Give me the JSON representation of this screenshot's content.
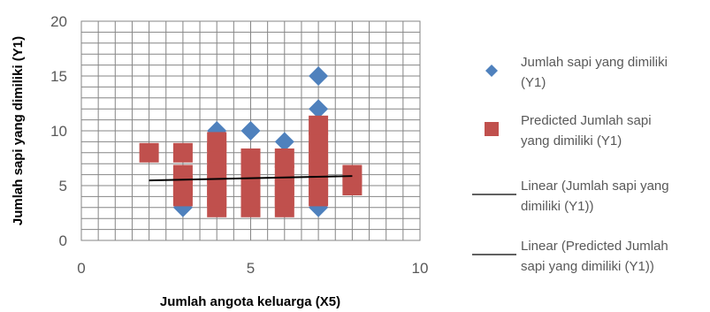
{
  "chart_data": {
    "type": "scatter",
    "xlabel": "Jumlah angota keluarga (X5)",
    "ylabel": "Jumlah sapi yang dimiliki (Y1)",
    "xlim": [
      0,
      10
    ],
    "ylim": [
      0,
      20
    ],
    "x_ticks": [
      0,
      5,
      10
    ],
    "y_ticks": [
      0,
      5,
      10,
      15,
      20
    ],
    "x_tick_labels": [
      "0",
      "5",
      "10"
    ],
    "y_tick_labels": [
      "0",
      "5",
      "10",
      "15",
      "20"
    ],
    "grid": true,
    "legend_position": "right",
    "series": [
      {
        "name": "Jumlah sapi yang dimiliki (Y1)",
        "legend_lines": [
          "Jumlah sapi yang dimiliki",
          "(Y1)"
        ],
        "marker": "diamond",
        "color": "#4F81BD",
        "points": [
          {
            "x": 3,
            "y": 3
          },
          {
            "x": 3,
            "y": 4
          },
          {
            "x": 3,
            "y": 5
          },
          {
            "x": 3,
            "y": 6
          },
          {
            "x": 4,
            "y": 3
          },
          {
            "x": 4,
            "y": 4
          },
          {
            "x": 4,
            "y": 5
          },
          {
            "x": 4,
            "y": 6
          },
          {
            "x": 4,
            "y": 7
          },
          {
            "x": 4,
            "y": 8
          },
          {
            "x": 4,
            "y": 10
          },
          {
            "x": 5,
            "y": 3
          },
          {
            "x": 5,
            "y": 4
          },
          {
            "x": 5,
            "y": 5
          },
          {
            "x": 5,
            "y": 6
          },
          {
            "x": 5,
            "y": 10
          },
          {
            "x": 6,
            "y": 3
          },
          {
            "x": 6,
            "y": 4
          },
          {
            "x": 6,
            "y": 5
          },
          {
            "x": 6,
            "y": 6
          },
          {
            "x": 6,
            "y": 9
          },
          {
            "x": 7,
            "y": 3
          },
          {
            "x": 7,
            "y": 12
          },
          {
            "x": 7,
            "y": 15
          }
        ]
      },
      {
        "name": "Predicted Jumlah sapi yang dimiliki (Y1)",
        "legend_lines": [
          "Predicted Jumlah sapi",
          "yang dimiliki (Y1)"
        ],
        "marker": "square",
        "color": "#C0504D",
        "points": [
          {
            "x": 2,
            "y": 8
          },
          {
            "x": 3,
            "y": 4
          },
          {
            "x": 3,
            "y": 5
          },
          {
            "x": 3,
            "y": 6
          },
          {
            "x": 3,
            "y": 8
          },
          {
            "x": 4,
            "y": 3
          },
          {
            "x": 4,
            "y": 4
          },
          {
            "x": 4,
            "y": 5
          },
          {
            "x": 4,
            "y": 6
          },
          {
            "x": 4,
            "y": 7
          },
          {
            "x": 4,
            "y": 8
          },
          {
            "x": 4,
            "y": 9
          },
          {
            "x": 5,
            "y": 3
          },
          {
            "x": 5,
            "y": 4
          },
          {
            "x": 5,
            "y": 5
          },
          {
            "x": 5,
            "y": 6
          },
          {
            "x": 5,
            "y": 7.5
          },
          {
            "x": 6,
            "y": 3
          },
          {
            "x": 6,
            "y": 4
          },
          {
            "x": 6,
            "y": 5
          },
          {
            "x": 6,
            "y": 6
          },
          {
            "x": 6,
            "y": 7.5
          },
          {
            "x": 7,
            "y": 4
          },
          {
            "x": 7,
            "y": 5
          },
          {
            "x": 7,
            "y": 6
          },
          {
            "x": 7,
            "y": 7
          },
          {
            "x": 7,
            "y": 8
          },
          {
            "x": 7,
            "y": 9
          },
          {
            "x": 7,
            "y": 10.5
          },
          {
            "x": 8,
            "y": 5
          },
          {
            "x": 8,
            "y": 6
          }
        ]
      }
    ],
    "trendlines": [
      {
        "name": "Linear (Jumlah sapi yang dimiliki (Y1))",
        "legend_lines": [
          "Linear (Jumlah sapi yang",
          "dimiliki (Y1))"
        ],
        "color": "#000000",
        "from": {
          "x": 2,
          "y": 5.45
        },
        "to": {
          "x": 8,
          "y": 5.85
        }
      },
      {
        "name": "Linear (Predicted Jumlah sapi yang dimiliki (Y1))",
        "legend_lines": [
          "Linear (Predicted Jumlah",
          "sapi yang dimiliki (Y1))"
        ],
        "color": "#000000",
        "from": {
          "x": 2,
          "y": 5.5
        },
        "to": {
          "x": 8,
          "y": 5.9
        }
      }
    ]
  }
}
